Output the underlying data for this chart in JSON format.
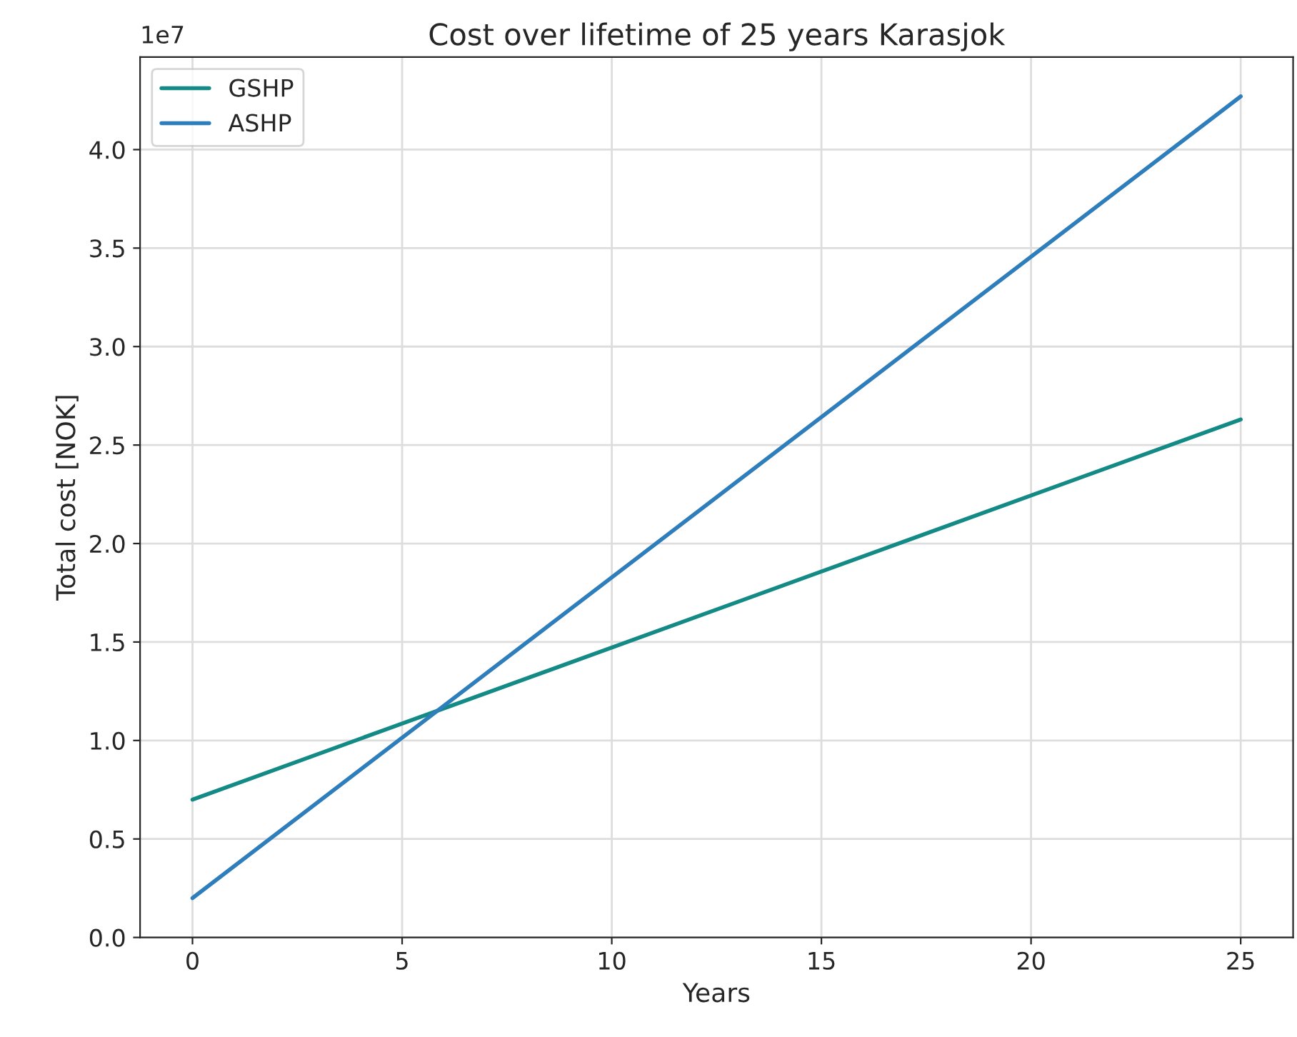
{
  "chart_data": {
    "type": "line",
    "title": "Cost over lifetime of 25 years Karasjok",
    "xlabel": "Years",
    "ylabel": "Total cost [NOK]",
    "x": [
      0,
      25
    ],
    "series": [
      {
        "name": "GSHP",
        "color": "#138a85",
        "values": [
          0.7,
          2.63
        ]
      },
      {
        "name": "ASHP",
        "color": "#2e7ebb",
        "values": [
          0.2,
          4.27
        ]
      }
    ],
    "xlim": [
      -1.25,
      26.25
    ],
    "xticks": [
      0,
      5,
      10,
      15,
      20,
      25
    ],
    "ylim": [
      0,
      4.47
    ],
    "yticks": [
      {
        "value": 0,
        "label": "0.0"
      },
      {
        "value": 0.5,
        "label": "0.5"
      },
      {
        "value": 1,
        "label": "1.0"
      },
      {
        "value": 1.5,
        "label": "1.5"
      },
      {
        "value": 2,
        "label": "2.0"
      },
      {
        "value": 2.5,
        "label": "2.5"
      },
      {
        "value": 3,
        "label": "3.0"
      },
      {
        "value": 3.5,
        "label": "3.5"
      },
      {
        "value": 4,
        "label": "4.0"
      }
    ],
    "annotations": [
      "1e7"
    ],
    "grid": true,
    "legend": "top left",
    "marker": "none",
    "line_style": "solid"
  }
}
